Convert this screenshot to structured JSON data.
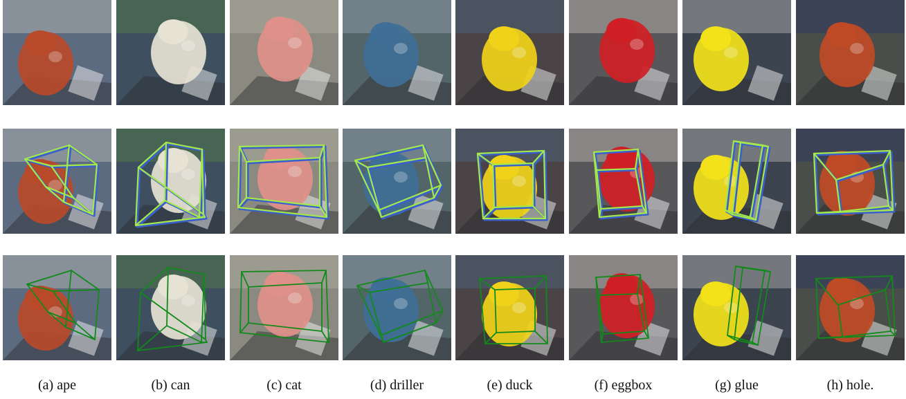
{
  "figure": {
    "rows": [
      {
        "row": 1,
        "overlay": "none"
      },
      {
        "row": 2,
        "overlay": "ground-truth-and-prediction",
        "colors": {
          "ground_truth": "#3a5fcd",
          "prediction": "#a4e84a"
        }
      },
      {
        "row": 3,
        "overlay": "prediction",
        "colors": {
          "prediction": "#128a1a"
        }
      }
    ],
    "columns": [
      {
        "key": "ape",
        "caption": "(a) ape",
        "palette": {
          "bg": "#5d6b80",
          "obj": "#b84a2a",
          "acc": "#d9d6cc"
        }
      },
      {
        "key": "can",
        "caption": "(b) can",
        "palette": {
          "bg": "#3e5060",
          "obj": "#e6e2d4",
          "acc": "#5b8b3c"
        }
      },
      {
        "key": "cat",
        "caption": "(c) cat",
        "palette": {
          "bg": "#8a8a80",
          "obj": "#e0908a",
          "acc": "#bdbab0"
        }
      },
      {
        "key": "driller",
        "caption": "(d) driller",
        "palette": {
          "bg": "#54656a",
          "obj": "#3f6f96",
          "acc": "#a9b5c2"
        }
      },
      {
        "key": "duck",
        "caption": "(e) duck",
        "palette": {
          "bg": "#4a4446",
          "obj": "#f0d21a",
          "acc": "#4c6f96"
        }
      },
      {
        "key": "eggbox",
        "caption": "(f) eggbox",
        "palette": {
          "bg": "#58575a",
          "obj": "#cf1f25",
          "acc": "#e2ddd3"
        }
      },
      {
        "key": "glue",
        "caption": "(g) glue",
        "palette": {
          "bg": "#3c4450",
          "obj": "#f3e21a",
          "acc": "#dedad2"
        }
      },
      {
        "key": "hole",
        "caption": "(h) hole.",
        "palette": {
          "bg": "#4a4e4a",
          "obj": "#c04a26",
          "acc": "#24306f"
        }
      }
    ]
  }
}
